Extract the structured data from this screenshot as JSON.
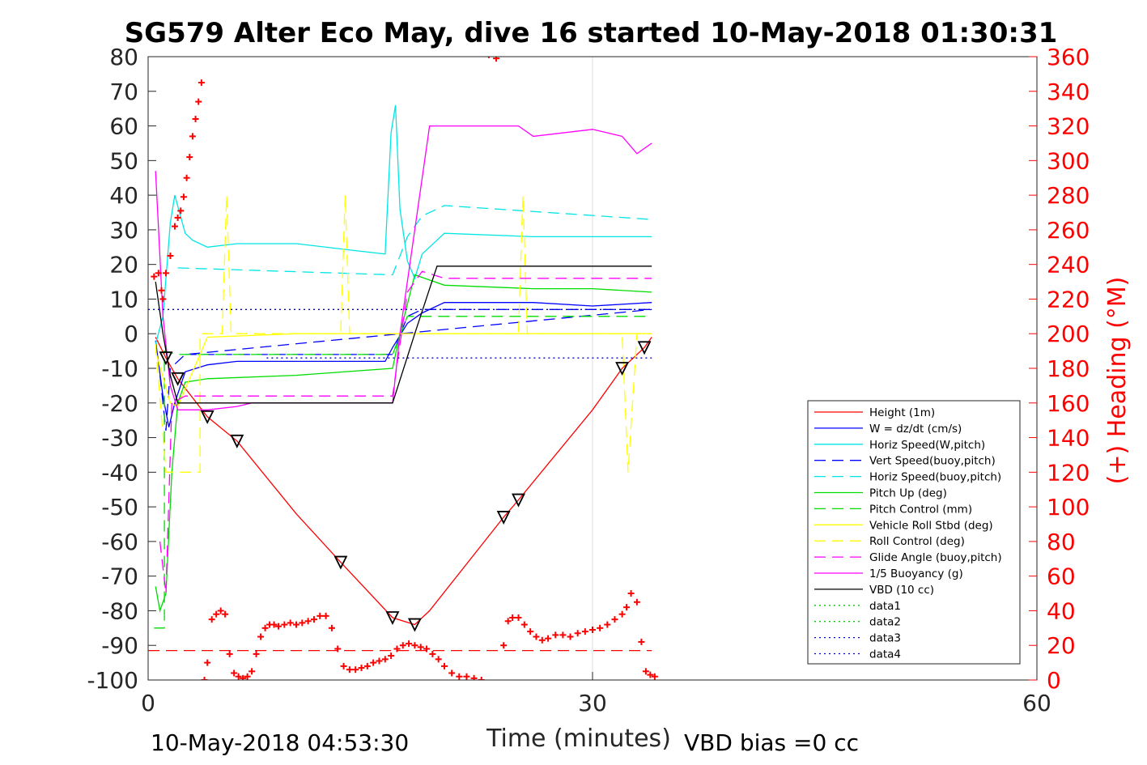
{
  "footer": {
    "timestamp": "10-May-2018 04:53:30",
    "vbd_bias": "VBD bias =0 cc"
  },
  "chart_data": {
    "type": "line",
    "title": "SG579 Alter Eco May, dive 16 started 10-May-2018 01:30:31",
    "xlabel": "Time (minutes)",
    "ylabel": "",
    "y2label": "(+) Heading (°M)",
    "xlim": [
      0,
      60
    ],
    "ylim": [
      -100,
      80
    ],
    "y2lim": [
      0,
      360
    ],
    "xticks": [
      0,
      30,
      60
    ],
    "yticks": [
      80,
      70,
      60,
      50,
      40,
      30,
      20,
      10,
      0,
      -10,
      -20,
      -30,
      -40,
      -50,
      -60,
      -70,
      -80,
      -90,
      -100
    ],
    "y2ticks": [
      360,
      340,
      320,
      300,
      280,
      260,
      240,
      220,
      200,
      180,
      160,
      140,
      120,
      100,
      80,
      60,
      40,
      20,
      0
    ],
    "grid_x": [
      30
    ],
    "legend_position": "bottom-right",
    "series": [
      {
        "name": "Height (1m)",
        "color": "#ff0000",
        "style": "solid",
        "x": [
          0.5,
          1.2,
          2.0,
          4.0,
          6.0,
          10.0,
          13.0,
          16.5,
          18.0,
          19.0,
          24.0,
          25.0,
          30.0,
          32.0,
          33.5,
          34.0
        ],
        "y": [
          -1,
          -7,
          -13,
          -24,
          -31,
          -52,
          -66,
          -82,
          -84,
          -80,
          -53,
          -48,
          -22,
          -10,
          -4,
          -1
        ]
      },
      {
        "name": "W = dz/dt (cm/s)",
        "color": "#0000ff",
        "style": "solid",
        "x": [
          0.5,
          1.0,
          1.4,
          1.8,
          2.5,
          4.0,
          6.0,
          10.0,
          14.0,
          16.0,
          16.5,
          17.5,
          18.5,
          20.0,
          26.0,
          30.0,
          34.0
        ],
        "y": [
          -2,
          -18,
          -27,
          -20,
          -11,
          -9,
          -8,
          -8,
          -8,
          -8,
          -4,
          3,
          6,
          9,
          9,
          8,
          9
        ]
      },
      {
        "name": "Horiz Speed(W,pitch)",
        "color": "#00e5e5",
        "style": "solid",
        "x": [
          0.5,
          1.0,
          1.5,
          1.8,
          2.5,
          3.0,
          4.0,
          6.0,
          10.0,
          14.0,
          16.0,
          16.4,
          16.7,
          17.0,
          17.5,
          18.0,
          18.5,
          20.0,
          26.0,
          30.0,
          34.0
        ],
        "y": [
          -3,
          5,
          32,
          40,
          29,
          27,
          25,
          26,
          26,
          24,
          23,
          58,
          66,
          36,
          21,
          16,
          23,
          29,
          28,
          28,
          28
        ]
      },
      {
        "name": "Vert Speed(buoy,pitch)",
        "color": "#0000ff",
        "style": "dashed",
        "x": [
          0.8,
          1.2,
          1.5,
          2.5,
          34.0
        ],
        "y": [
          -12,
          -28,
          -10,
          -6,
          7
        ],
        "x2": [
          2.5,
          16.5,
          17.5,
          18.5,
          34.0
        ],
        "y2": [
          -6,
          -6,
          5,
          7,
          7
        ]
      },
      {
        "name": "Horiz Speed(buoy,pitch)",
        "color": "#00e5e5",
        "style": "dashed",
        "x": [
          2.0,
          16.5,
          17.5,
          18.5,
          20.0,
          34.0
        ],
        "y": [
          19,
          17,
          28,
          34,
          37,
          33
        ]
      },
      {
        "name": "Pitch Up (deg)",
        "color": "#00dd00",
        "style": "solid",
        "x": [
          0.5,
          0.8,
          1.2,
          1.6,
          2.0,
          2.5,
          4.0,
          10.0,
          16.5,
          17.0,
          18.0,
          20.0,
          26.0,
          30.0,
          34.0
        ],
        "y": [
          -73,
          -80,
          -75,
          -40,
          -20,
          -14,
          -13,
          -12,
          -10,
          0,
          17,
          14,
          13,
          13,
          12
        ]
      },
      {
        "name": "Pitch Control (mm)",
        "color": "#00dd00",
        "style": "dashed",
        "x": [
          0.4,
          1.1,
          1.1,
          2.0,
          16.5,
          17.5,
          34.0
        ],
        "y": [
          -85,
          -85,
          -5,
          -6,
          -6,
          5,
          5
        ]
      },
      {
        "name": "Vehicle Roll Stbd (deg)",
        "color": "#ffff00",
        "style": "solid",
        "x": [
          0.5,
          1.5,
          2.0,
          4.0,
          10.0,
          20.0,
          30.0,
          32.0,
          34.0
        ],
        "y": [
          -5,
          -20,
          -21,
          -1,
          0,
          0,
          0,
          0,
          0
        ]
      },
      {
        "name": "Roll Control (deg)",
        "color": "#ffff00",
        "style": "dashed",
        "x": [
          0.5,
          1.2,
          3.5,
          3.5,
          5.0,
          5.3,
          5.6,
          13.0,
          13.3,
          13.6,
          25.0,
          25.3,
          25.6,
          32.0,
          32.4,
          33.0,
          34.0
        ],
        "y": [
          -3,
          -40,
          -40,
          0,
          0,
          40,
          0,
          0,
          40,
          0,
          0,
          40,
          0,
          0,
          -40,
          0,
          0
        ]
      },
      {
        "name": "Glide Angle (buoy,pitch)",
        "color": "#ff00ff",
        "style": "dashed",
        "x": [
          0.8,
          1.2,
          1.6,
          2.5,
          16.5,
          17.5,
          18.5,
          20.0,
          34.0
        ],
        "y": [
          -60,
          -75,
          -20,
          -18,
          -18,
          12,
          18,
          16,
          16
        ]
      },
      {
        "name": "1/5 Buoyancy (g)",
        "color": "#ff00ff",
        "style": "solid",
        "x": [
          0.5,
          1.0,
          1.5,
          2.0,
          4.0,
          6.0,
          7.0,
          16.5,
          17.0,
          19.0,
          25.0,
          26.0,
          30.0,
          32.0,
          33.0,
          34.0
        ],
        "y": [
          47,
          5,
          -15,
          -22,
          -22,
          -21,
          -20,
          -20,
          0,
          60,
          60,
          57,
          59,
          57,
          52,
          55
        ]
      },
      {
        "name": "VBD (10 cc)",
        "color": "#000000",
        "style": "solid",
        "x": [
          0.5,
          1.0,
          1.5,
          2.0,
          16.5,
          18.0,
          19.5,
          34.0
        ],
        "y": [
          15,
          0,
          -12,
          -20,
          -20,
          0,
          19.5,
          19.5
        ]
      },
      {
        "name": "data1",
        "color": "#00cc00",
        "style": "dotted",
        "x": [],
        "y": []
      },
      {
        "name": "data2",
        "color": "#00cc00",
        "style": "dotted",
        "x": [],
        "y": []
      },
      {
        "name": "data3",
        "color": "#0000cc",
        "style": "dotted",
        "x": [
          0,
          34.0
        ],
        "y": [
          7,
          7
        ]
      },
      {
        "name": "data4",
        "color": "#0000cc",
        "style": "dotted",
        "x": [
          8.0,
          34.0
        ],
        "y": [
          -7,
          -7
        ]
      }
    ],
    "heading_series": {
      "name": "(+) Heading (°M)",
      "color": "#ff0000",
      "marker": "+",
      "x": [
        0.4,
        0.7,
        0.9,
        1.0,
        1.2,
        1.5,
        1.8,
        2.0,
        2.2,
        2.4,
        2.6,
        2.8,
        3.0,
        3.2,
        3.4,
        3.6,
        3.8,
        4.0,
        4.3,
        4.6,
        4.9,
        5.2,
        5.5,
        5.8,
        6.1,
        6.4,
        6.7,
        7.0,
        7.3,
        7.6,
        7.9,
        8.2,
        8.5,
        8.8,
        9.2,
        9.6,
        10.0,
        10.4,
        10.8,
        11.2,
        11.6,
        12.0,
        12.4,
        12.8,
        13.2,
        13.6,
        14.0,
        14.4,
        14.8,
        15.2,
        15.6,
        16.0,
        16.4,
        16.8,
        17.2,
        17.6,
        18.0,
        18.4,
        18.8,
        19.2,
        19.6,
        20.0,
        20.5,
        21.0,
        21.5,
        22.0,
        22.5,
        23.0,
        23.5,
        24.0,
        24.3,
        24.6,
        25.0,
        25.4,
        25.8,
        26.2,
        26.6,
        27.0,
        27.5,
        28.0,
        28.5,
        29.0,
        29.5,
        30.0,
        30.5,
        31.0,
        31.5,
        32.0,
        32.3,
        32.6,
        33.0,
        33.3,
        33.6,
        33.9,
        34.2
      ],
      "y": [
        233,
        235,
        225,
        220,
        235,
        245,
        262,
        267,
        271,
        279,
        290,
        302,
        314,
        324,
        334,
        345,
        0,
        10,
        35,
        38,
        40,
        38,
        15,
        4,
        2,
        1,
        2,
        5,
        15,
        25,
        30,
        32,
        32,
        31,
        32,
        33,
        32,
        33,
        34,
        35,
        37,
        37,
        30,
        18,
        8,
        6,
        6,
        7,
        8,
        10,
        11,
        12,
        14,
        18,
        20,
        21,
        20,
        19,
        18,
        15,
        12,
        8,
        4,
        2,
        2,
        1,
        0,
        361,
        359,
        20,
        34,
        36,
        36,
        32,
        28,
        25,
        23,
        24,
        26,
        26,
        25,
        27,
        28,
        29,
        30,
        32,
        35,
        38,
        42,
        50,
        45,
        22,
        5,
        3,
        2
      ]
    },
    "heading_ref": {
      "style": "dashed",
      "color": "#ff0000",
      "value": 17
    }
  }
}
